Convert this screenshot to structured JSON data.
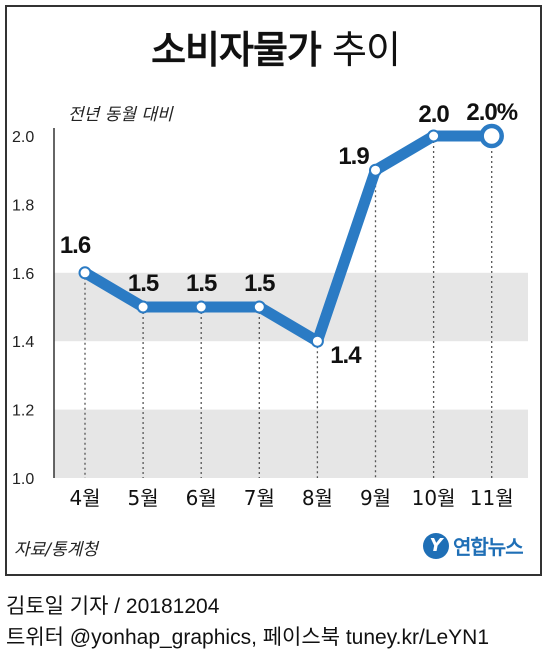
{
  "header": {
    "title_bold": "소비자물가",
    "title_light": "추이"
  },
  "chart_data": {
    "type": "line",
    "title": "소비자물가 추이",
    "ylabel": "전년 동월 대비",
    "categories": [
      "4월",
      "5월",
      "6월",
      "7월",
      "8월",
      "9월",
      "10월",
      "11월"
    ],
    "series": [
      {
        "values": [
          1.6,
          1.5,
          1.5,
          1.5,
          1.4,
          1.9,
          2.0,
          2.0
        ]
      }
    ],
    "data_labels": [
      "1.6",
      "1.5",
      "1.5",
      "1.5",
      "1.4",
      "1.9",
      "2.0",
      "2.0%"
    ],
    "ylim": [
      1.0,
      2.0
    ],
    "yticks": [
      "1.0",
      "1.2",
      "1.4",
      "1.6",
      "1.8",
      "2.0"
    ],
    "bands": [
      [
        1.0,
        1.2
      ],
      [
        1.4,
        1.6
      ]
    ],
    "line_color": "#2b7bc4",
    "band_color": "#e6e6e6",
    "highlight_last": true
  },
  "footer": {
    "source": "자료/통계청",
    "logo_mark": "Y",
    "logo_text": "연합뉴스",
    "credit_line1": "김토일 기자 / 20181204",
    "credit_line2": "트위터 @yonhap_graphics, 페이스북 tuney.kr/LeYN1"
  }
}
